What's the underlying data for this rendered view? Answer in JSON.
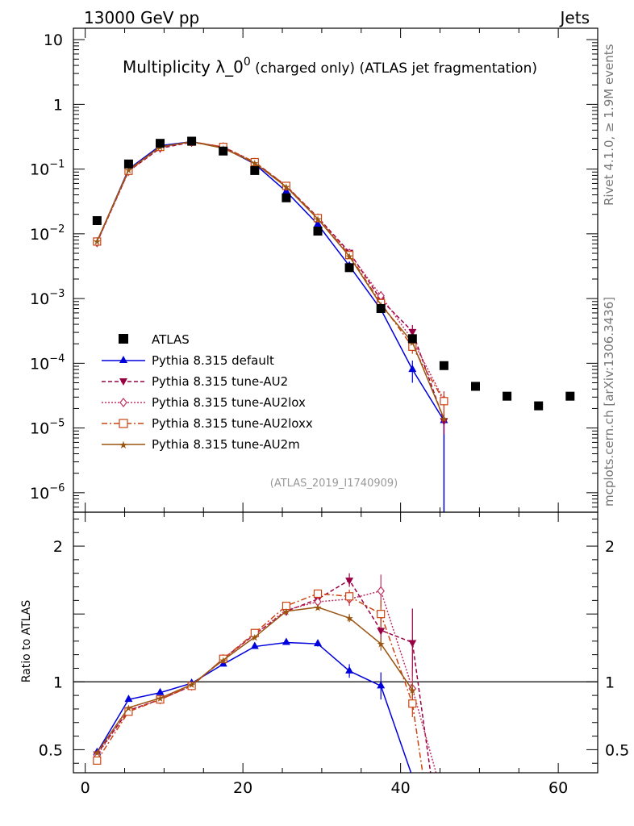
{
  "header": {
    "left": "13000 GeV pp",
    "right": "Jets"
  },
  "side_text": {
    "rivet": "Rivet 4.1.0, ≥ 1.9M events",
    "mcplots": "mcplots.cern.ch [arXiv:1306.3436]"
  },
  "chart_data": {
    "type": "line",
    "title": "Multiplicity λ_0",
    "title_superscript": "0",
    "title_suffix": " (charged only) (ATLAS jet fragmentation)",
    "analysis_id": "(ATLAS_2019_I1740909)",
    "xlim": [
      -1.5,
      65
    ],
    "ylim_main": [
      5e-07,
      15
    ],
    "ylim_ratio": [
      0.33,
      2.25
    ],
    "ratio_ylabel": "Ratio to ATLAS",
    "main_yticks": [
      {
        "v": 10,
        "label": "10",
        "exp": ""
      },
      {
        "v": 1,
        "label": "1",
        "exp": ""
      },
      {
        "v": 0.1,
        "label": "10",
        "exp": "−1"
      },
      {
        "v": 0.01,
        "label": "10",
        "exp": "−2"
      },
      {
        "v": 0.001,
        "label": "10",
        "exp": "−3"
      },
      {
        "v": 0.0001,
        "label": "10",
        "exp": "−4"
      },
      {
        "v": 1e-05,
        "label": "10",
        "exp": "−5"
      },
      {
        "v": 1e-06,
        "label": "10",
        "exp": "−6"
      }
    ],
    "ratio_yticks": [
      {
        "v": 0.5,
        "label": "0.5"
      },
      {
        "v": 1,
        "label": "1"
      },
      {
        "v": 2,
        "label": "2"
      }
    ],
    "xticks": [
      {
        "v": 0,
        "label": "0"
      },
      {
        "v": 20,
        "label": "20"
      },
      {
        "v": 40,
        "label": "40"
      },
      {
        "v": 60,
        "label": "60"
      }
    ],
    "data": {
      "name": "ATLAS",
      "x": [
        1.5,
        5.5,
        9.5,
        13.5,
        17.5,
        21.5,
        25.5,
        29.5,
        33.5,
        37.5,
        41.5,
        45.5,
        49.5,
        53.5,
        57.5,
        61.5
      ],
      "y": [
        0.016,
        0.12,
        0.25,
        0.27,
        0.19,
        0.095,
        0.036,
        0.011,
        0.003,
        0.0007,
        0.00024,
        9.2e-05,
        4.4e-05,
        3.1e-05,
        2.2e-05,
        3.1e-05
      ]
    },
    "series": [
      {
        "name": "Pythia 8.315 default",
        "color": "#0000dd",
        "dash": "",
        "marker": "triangle-up",
        "x": [
          1.5,
          5.5,
          9.5,
          13.5,
          17.5,
          21.5,
          25.5,
          29.5,
          33.5,
          37.5,
          41.5,
          45.5,
          45.5
        ],
        "y": [
          0.0075,
          0.1,
          0.23,
          0.265,
          0.215,
          0.12,
          0.045,
          0.014,
          0.0032,
          0.00068,
          8e-05,
          1.3e-05,
          2e-07
        ],
        "yerr": [
          0,
          0,
          0,
          0,
          0,
          0,
          0,
          0,
          0,
          0,
          3e-05,
          0,
          0
        ],
        "ratio_x": [
          1.5,
          5.5,
          9.5,
          13.5,
          17.5,
          21.5,
          25.5,
          29.5,
          33.5,
          37.5,
          41.5
        ],
        "ratio": [
          0.48,
          0.87,
          0.92,
          0.99,
          1.13,
          1.26,
          1.29,
          1.28,
          1.08,
          0.97,
          0.3
        ],
        "ratio_err": [
          0.02,
          0.01,
          0.01,
          0.01,
          0.01,
          0.01,
          0.01,
          0.02,
          0.05,
          0.1,
          0
        ]
      },
      {
        "name": "Pythia 8.315 tune-AU2",
        "color": "#990044",
        "dash": "5,3",
        "marker": "triangle-down",
        "x": [
          1.5,
          5.5,
          9.5,
          13.5,
          17.5,
          21.5,
          25.5,
          29.5,
          33.5,
          37.5,
          41.5,
          45.5
        ],
        "y": [
          0.0074,
          0.093,
          0.21,
          0.26,
          0.22,
          0.128,
          0.055,
          0.018,
          0.0052,
          0.00096,
          0.00031,
          1.3e-05
        ],
        "yerr": [
          0,
          0,
          0,
          0,
          0,
          0,
          0,
          0,
          0,
          0.00015,
          8e-05,
          5e-06
        ],
        "ratio_x": [
          1.5,
          5.5,
          9.5,
          13.5,
          17.5,
          21.5,
          25.5,
          29.5,
          33.5,
          37.5,
          41.5,
          43.8
        ],
        "ratio": [
          0.47,
          0.79,
          0.87,
          0.97,
          1.17,
          1.35,
          1.52,
          1.61,
          1.75,
          1.38,
          1.29,
          0.33
        ],
        "ratio_err": [
          0.02,
          0.01,
          0.01,
          0.01,
          0.01,
          0.01,
          0.02,
          0.03,
          0.05,
          0.1,
          0.25,
          0
        ]
      },
      {
        "name": "Pythia 8.315 tune-AU2lox",
        "color": "#c03060",
        "dash": "2,2",
        "marker": "diamond-open",
        "x": [
          1.5,
          5.5,
          9.5,
          13.5,
          17.5,
          21.5,
          25.5,
          29.5,
          33.5,
          37.5,
          41.5,
          45.5
        ],
        "y": [
          0.0073,
          0.092,
          0.215,
          0.262,
          0.22,
          0.127,
          0.054,
          0.0175,
          0.005,
          0.0011,
          0.00023,
          2.7e-05
        ],
        "yerr": [
          0,
          0,
          0,
          0,
          0,
          0,
          0,
          0,
          0,
          0.0002,
          5e-05,
          1e-05
        ],
        "ratio_x": [
          1.5,
          5.5,
          9.5,
          13.5,
          17.5,
          21.5,
          25.5,
          29.5,
          33.5,
          37.5,
          41.5,
          44.5
        ],
        "ratio": [
          0.46,
          0.79,
          0.87,
          0.97,
          1.17,
          1.35,
          1.53,
          1.59,
          1.61,
          1.67,
          0.95,
          0.33
        ],
        "ratio_err": [
          0.02,
          0.01,
          0.01,
          0.01,
          0.01,
          0.01,
          0.02,
          0.03,
          0.05,
          0.12,
          0.15,
          0
        ]
      },
      {
        "name": "Pythia 8.315 tune-AU2loxx",
        "color": "#cc4411",
        "dash": "7,3,2,3",
        "marker": "square-open",
        "x": [
          1.5,
          5.5,
          9.5,
          13.5,
          17.5,
          21.5,
          25.5,
          29.5,
          33.5,
          37.5,
          41.5,
          45.5
        ],
        "y": [
          0.0076,
          0.094,
          0.22,
          0.265,
          0.22,
          0.128,
          0.055,
          0.0175,
          0.0047,
          0.00085,
          0.00018,
          2.6e-05
        ],
        "yerr": [
          0,
          0,
          0,
          0,
          0,
          0,
          0,
          0,
          0,
          0,
          4e-05,
          1e-05
        ],
        "ratio_x": [
          1.5,
          5.5,
          9.5,
          13.5,
          17.5,
          21.5,
          25.5,
          29.5,
          33.5,
          37.5,
          41.5,
          42.8
        ],
        "ratio": [
          0.42,
          0.78,
          0.87,
          0.97,
          1.17,
          1.36,
          1.56,
          1.65,
          1.63,
          1.5,
          0.84,
          0.33
        ],
        "ratio_err": [
          0.02,
          0.01,
          0.01,
          0.01,
          0.01,
          0.01,
          0.02,
          0.03,
          0.05,
          0.1,
          0.1,
          0
        ]
      },
      {
        "name": "Pythia 8.315 tune-AU2m",
        "color": "#995511",
        "dash": "",
        "marker": "star",
        "x": [
          1.5,
          5.5,
          9.5,
          13.5,
          17.5,
          21.5,
          25.5,
          29.5,
          33.5,
          37.5,
          41.5,
          45.5
        ],
        "y": [
          0.0077,
          0.097,
          0.22,
          0.265,
          0.21,
          0.124,
          0.053,
          0.017,
          0.0045,
          0.0008,
          0.00021,
          1.4e-05
        ],
        "yerr": [
          0,
          0,
          0,
          0,
          0,
          0,
          0,
          0,
          0,
          0,
          0,
          0
        ],
        "ratio_x": [
          1.5,
          5.5,
          9.5,
          13.5,
          17.5,
          21.5,
          25.5,
          29.5,
          33.5,
          37.5,
          41.5
        ],
        "ratio": [
          0.48,
          0.81,
          0.88,
          0.98,
          1.16,
          1.33,
          1.52,
          1.55,
          1.47,
          1.28,
          0.94
        ],
        "ratio_err": [
          0.01,
          0.01,
          0.01,
          0.01,
          0.01,
          0.01,
          0.01,
          0.02,
          0.03,
          0.05,
          0.05
        ]
      }
    ]
  }
}
